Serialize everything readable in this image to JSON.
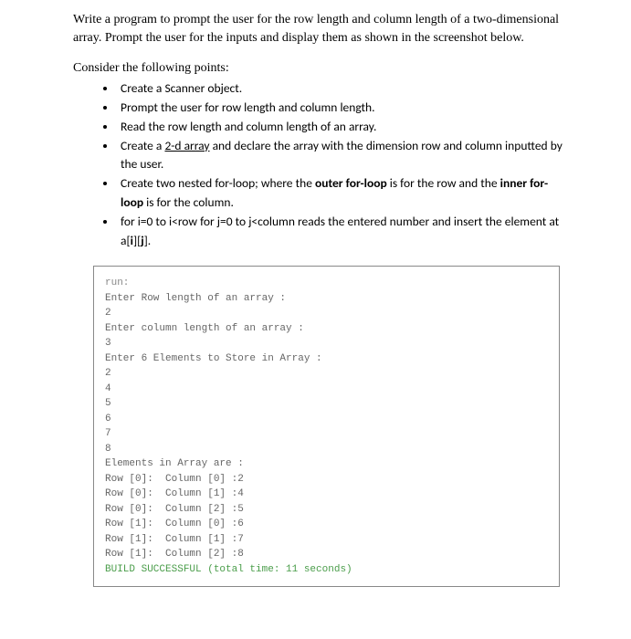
{
  "intro": {
    "text": "Write a program to prompt the user for the row length and column length of a two-dimensional array. Prompt the user for the inputs and display them as shown in the screenshot below."
  },
  "consider_heading": "Consider the following points:",
  "points": {
    "p1": "Create a Scanner object.",
    "p2": "Prompt the user for row length and column length.",
    "p3": "Read the row length and column length of an array.",
    "p4_prefix": "Create a ",
    "p4_underlined": "2-d array",
    "p4_suffix": " and declare the array with the dimension row and column inputted by the user.",
    "p5_prefix": "Create two nested for-loop; where the ",
    "p5_bold1": "outer for-loop",
    "p5_mid": " is for the row and the ",
    "p5_bold2": "inner for-loop",
    "p5_suffix": " is for the column.",
    "p6_prefix": "for i=0 to i<row for j=0 to j<column reads the entered number and insert the element at a[",
    "p6_b1": "i",
    "p6_m": "][",
    "p6_b2": "j",
    "p6_suffix": "]."
  },
  "console": {
    "lines": [
      "run:",
      "Enter Row length of an array :",
      "2",
      "Enter column length of an array :",
      "3",
      "Enter 6 Elements to Store in Array :",
      "2",
      "4",
      "5",
      "6",
      "7",
      "8",
      "Elements in Array are :",
      "Row [0]:  Column [0] :2",
      "Row [0]:  Column [1] :4",
      "Row [0]:  Column [2] :5",
      "Row [1]:  Column [0] :6",
      "Row [1]:  Column [1] :7",
      "Row [1]:  Column [2] :8"
    ],
    "success_line": "BUILD SUCCESSFUL (total time: 11 seconds)"
  }
}
